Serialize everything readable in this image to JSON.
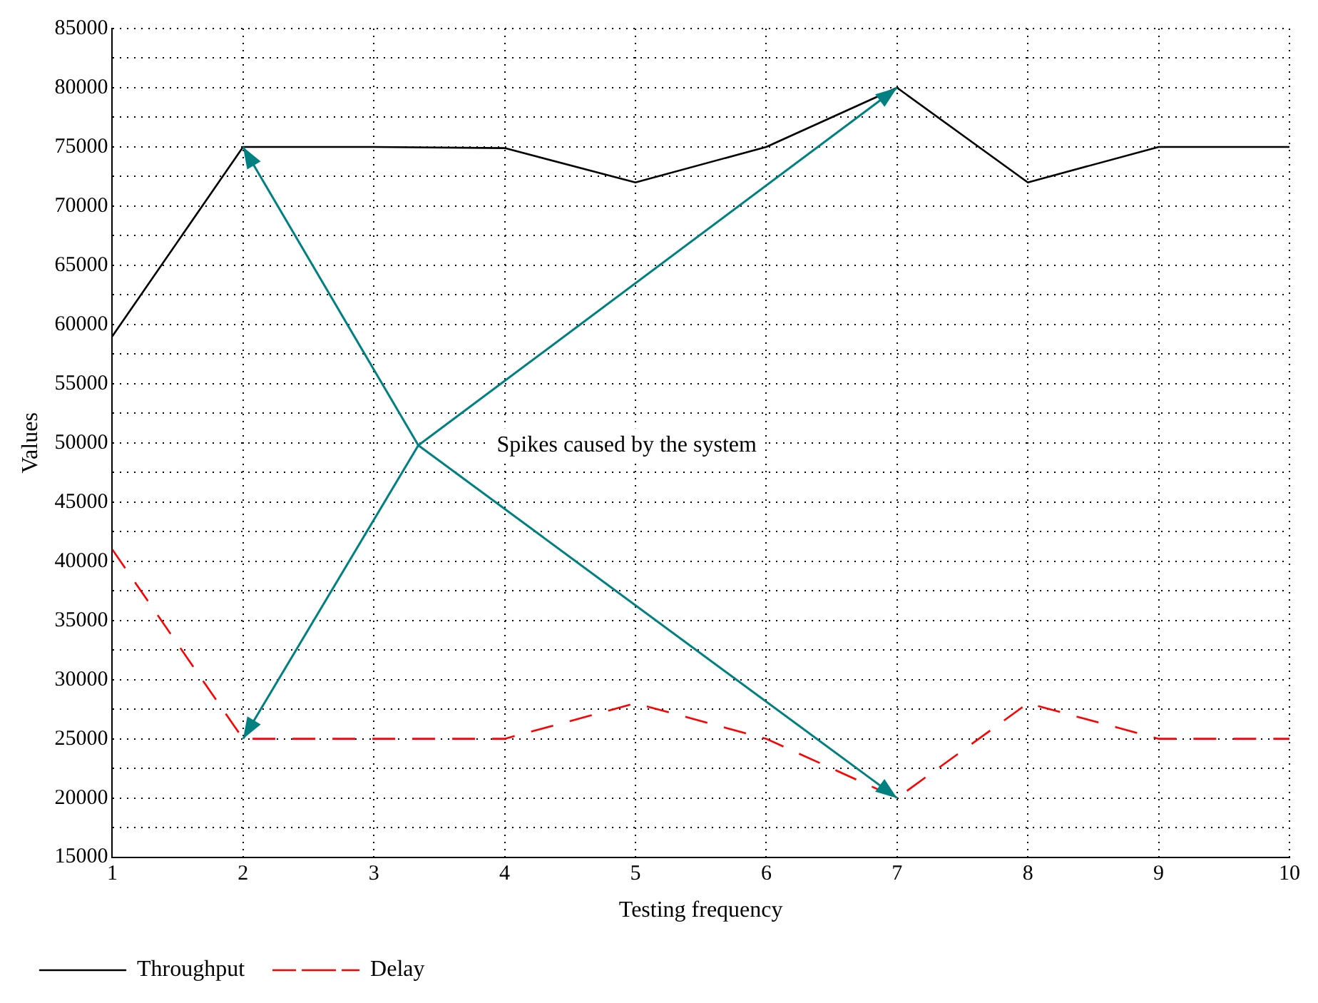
{
  "chart_data": {
    "type": "line",
    "xlabel": "Testing frequency",
    "ylabel": "Values",
    "x": [
      1,
      2,
      3,
      4,
      5,
      6,
      7,
      8,
      9,
      10
    ],
    "series": [
      {
        "name": "Throughput",
        "color": "#000000",
        "line_style": "solid",
        "values": [
          59000,
          75000,
          75000,
          74900,
          72000,
          75000,
          80000,
          72000,
          75000,
          75000
        ]
      },
      {
        "name": "Delay",
        "color": "#ff0000",
        "line_style": "dashed",
        "values": [
          41000,
          25000,
          25000,
          25000,
          28000,
          25000,
          20000,
          28000,
          25000,
          25000
        ]
      }
    ],
    "xlim": [
      1,
      10
    ],
    "xticks": [
      1,
      2,
      3,
      4,
      5,
      6,
      7,
      8,
      9,
      10
    ],
    "ylim": [
      15000,
      85000
    ],
    "yticks": [
      15000,
      {
        "value": 17500,
        "label": null
      },
      20000,
      {
        "value": 22500,
        "label": null
      },
      25000,
      {
        "value": 27500,
        "label": null
      },
      30000,
      {
        "value": 32500,
        "label": null
      },
      35000,
      {
        "value": 37500,
        "label": null
      },
      40000,
      {
        "value": 42500,
        "label": null
      },
      45000,
      {
        "value": 47500,
        "label": null
      },
      50000,
      {
        "value": 52500,
        "label": null
      },
      55000,
      {
        "value": 57500,
        "label": null
      },
      60000,
      {
        "value": 62500,
        "label": null
      },
      65000,
      {
        "value": 67500,
        "label": null
      },
      70000,
      {
        "value": 72500,
        "label": null
      },
      75000,
      {
        "value": 77500,
        "label": null
      },
      80000,
      {
        "value": 82500,
        "label": null
      },
      85000
    ],
    "grid": true,
    "legend": "bottom left",
    "marker": "none",
    "annotations": [
      "Spikes caused by the system"
    ]
  }
}
